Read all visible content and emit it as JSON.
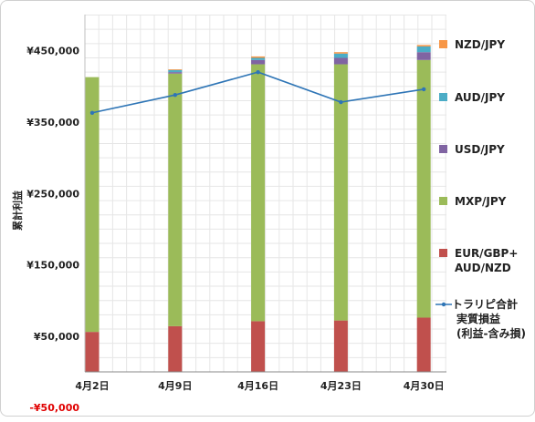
{
  "chart_data": {
    "type": "bar",
    "stacked": true,
    "categories": [
      "4月2日",
      "4月9日",
      "4月16日",
      "4月23日",
      "4月30日"
    ],
    "ylabel": "累計利益",
    "y_ticks": [
      {
        "value": 450000,
        "label": "¥450,000"
      },
      {
        "value": 350000,
        "label": "¥350,000"
      },
      {
        "value": 250000,
        "label": "¥250,000"
      },
      {
        "value": 150000,
        "label": "¥150,000"
      },
      {
        "value": 50000,
        "label": "¥50,000"
      },
      {
        "value": -50000,
        "label": "-¥50,000"
      }
    ],
    "ylim": [
      -50000,
      500000
    ],
    "gridlines": true,
    "legend_position": "right",
    "series": [
      {
        "name": "EUR/GBP+\nAUD/NZD",
        "color": "#c0504d",
        "values": [
          56000,
          64000,
          71000,
          72000,
          76000
        ]
      },
      {
        "name": "MXP/JPY",
        "color": "#9bbb59",
        "values": [
          357000,
          354000,
          360000,
          359000,
          361000
        ]
      },
      {
        "name": "USD/JPY",
        "color": "#8064a2",
        "values": [
          0,
          2000,
          6000,
          9000,
          11000
        ]
      },
      {
        "name": "AUD/JPY",
        "color": "#4bacc6",
        "values": [
          0,
          3000,
          3000,
          6000,
          8000
        ]
      },
      {
        "name": "NZD/JPY",
        "color": "#f79646",
        "values": [
          0,
          1000,
          2000,
          2000,
          2000
        ]
      }
    ],
    "line_series": {
      "name": "トラリピ合計\n実質損益\n(利益-含み損)",
      "color": "#2e75b6",
      "values": [
        363000,
        388000,
        420000,
        378000,
        396000
      ]
    }
  }
}
